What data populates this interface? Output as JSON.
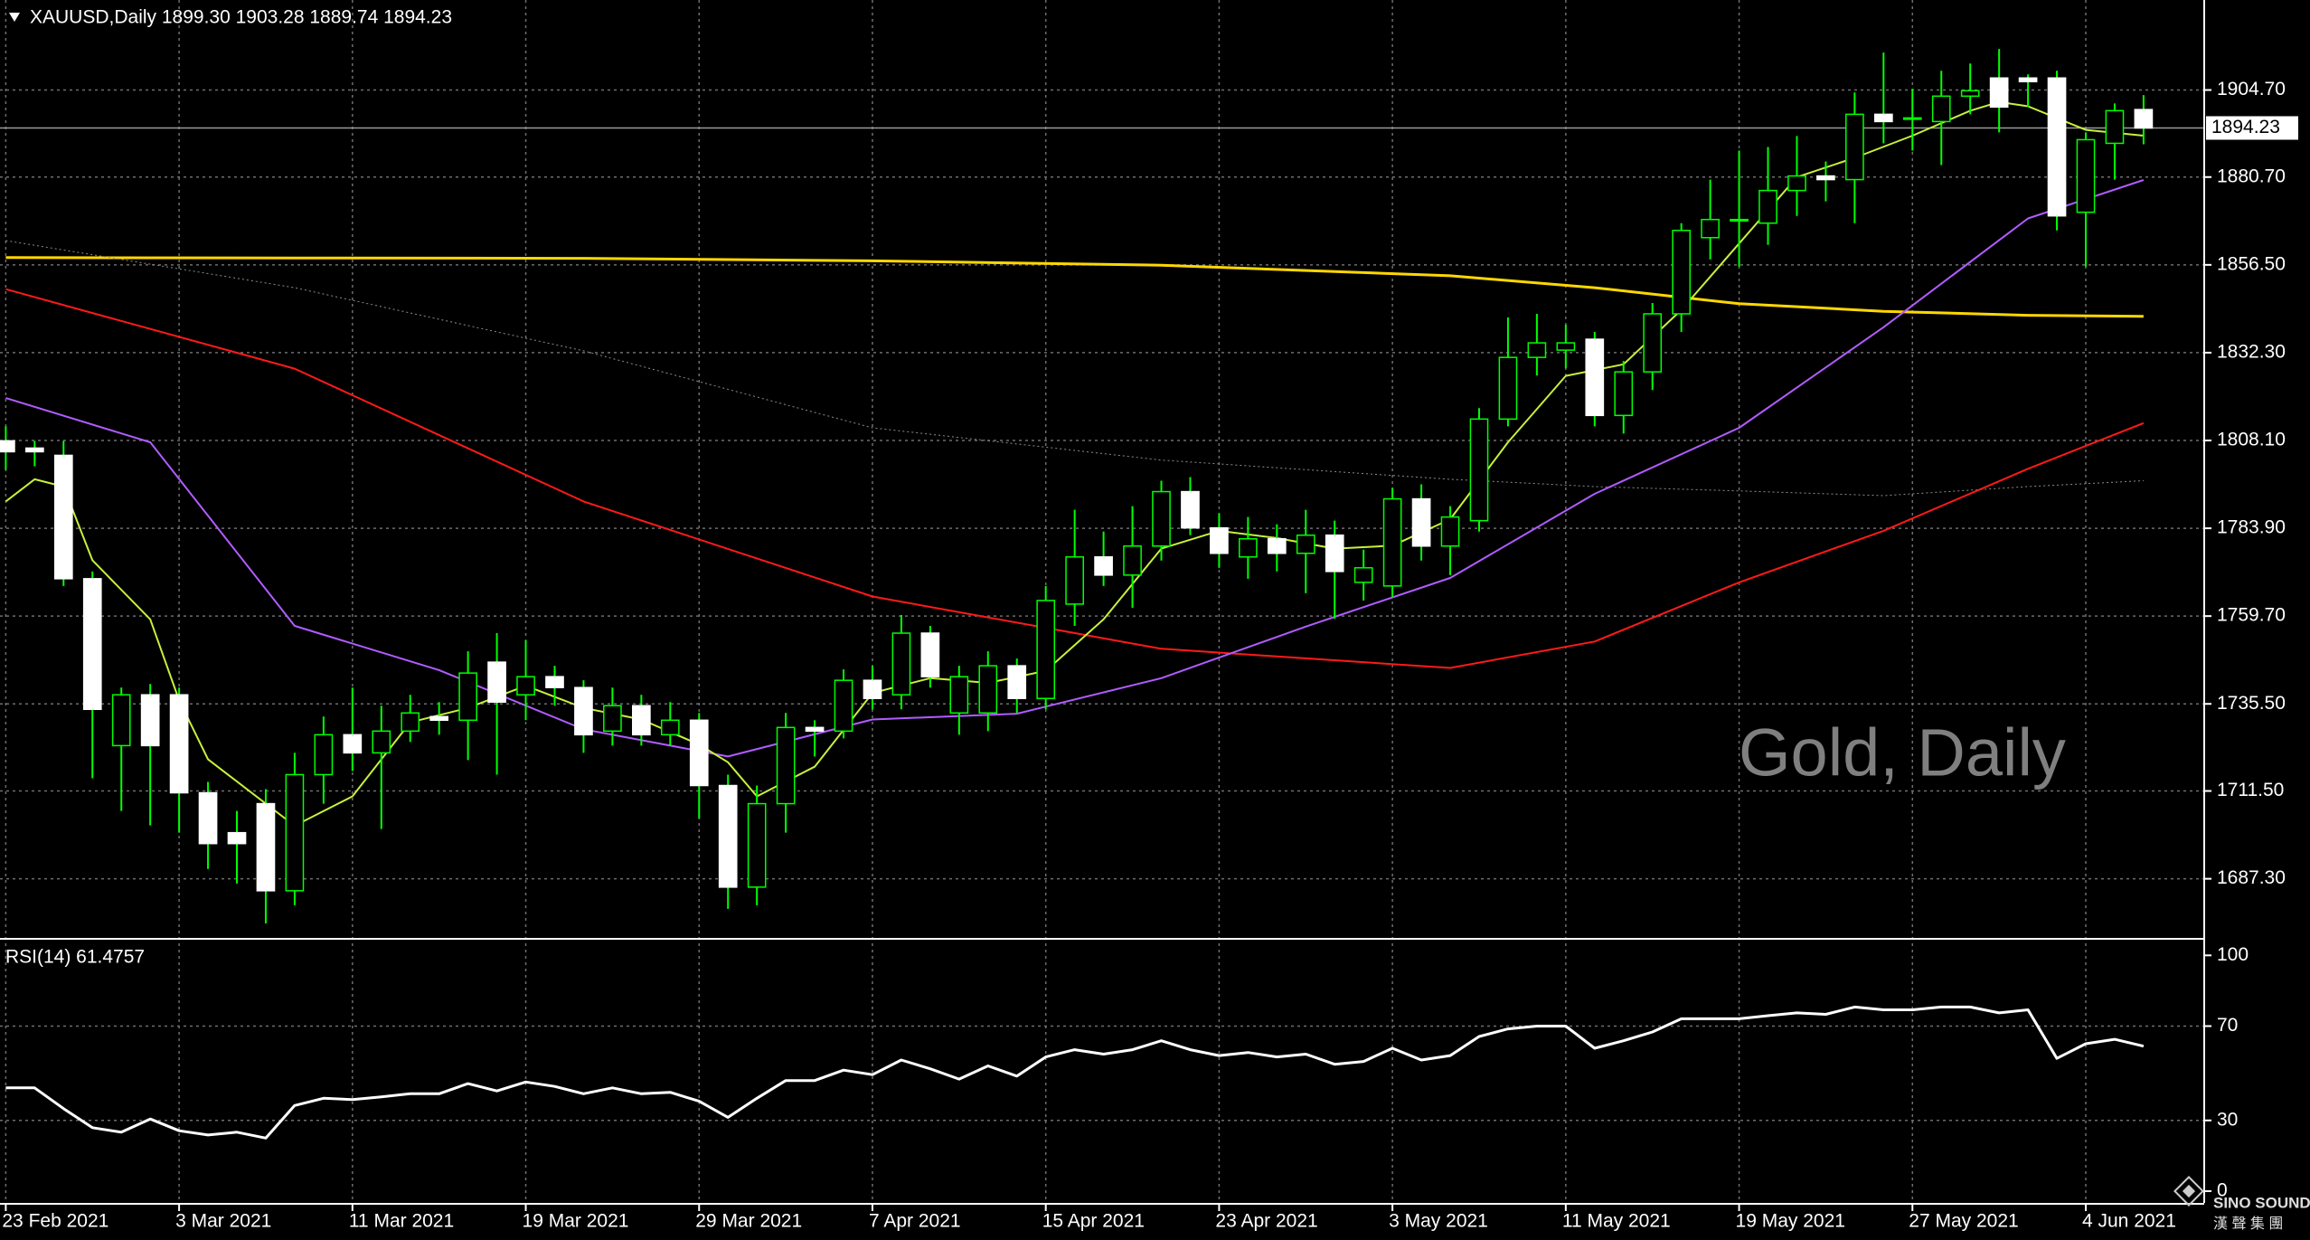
{
  "chart_data": [
    {
      "type": "candlestick",
      "title": "XAUUSD,Daily  1899.30 1903.28 1889.74 1894.23",
      "watermark": "Gold, Daily",
      "categories": [
        "23 Feb 2021",
        null,
        null,
        null,
        null,
        null,
        "3 Mar 2021",
        null,
        null,
        null,
        null,
        null,
        "11 Mar 2021",
        null,
        null,
        null,
        null,
        null,
        "19 Mar 2021",
        null,
        null,
        null,
        null,
        null,
        "29 Mar 2021",
        null,
        null,
        null,
        null,
        null,
        "7 Apr 2021",
        null,
        null,
        null,
        null,
        null,
        "15 Apr 2021",
        null,
        null,
        null,
        null,
        null,
        "23 Apr 2021",
        null,
        null,
        null,
        null,
        null,
        "3 May 2021",
        null,
        null,
        null,
        null,
        null,
        "11 May 2021",
        null,
        null,
        null,
        null,
        null,
        "19 May 2021",
        null,
        null,
        null,
        null,
        null,
        "27 May 2021",
        null,
        null,
        null,
        null,
        null,
        "4 Jun 2021",
        null,
        null
      ],
      "open": [
        1808,
        1806,
        1804,
        1770,
        1724,
        1738,
        1738,
        1711,
        1700,
        1708,
        1684,
        1716,
        1727,
        1722,
        1728,
        1732,
        1731,
        1747,
        1738,
        1743,
        1740,
        1728,
        1735,
        1727,
        1731,
        1713,
        1685,
        1708,
        1729,
        1728,
        1742,
        1738,
        1755,
        1733,
        1733,
        1746,
        1737,
        1763,
        1776,
        1771,
        1779,
        1794,
        1784,
        1776,
        1781,
        1777,
        1782,
        1769,
        1768,
        1792,
        1779,
        1786,
        1814,
        1831,
        1833,
        1836,
        1815,
        1827,
        1843,
        1864,
        1869,
        1868,
        1877,
        1881,
        1880,
        1898,
        1897,
        1896,
        1903,
        1908,
        1908,
        1908,
        1871,
        1890,
        1899.3
      ],
      "high": [
        1812,
        1808,
        1808,
        1772,
        1740,
        1741,
        1740,
        1714,
        1706,
        1712,
        1722,
        1732,
        1740,
        1735,
        1738,
        1736,
        1750,
        1755,
        1753,
        1746,
        1742,
        1740,
        1738,
        1736,
        1733,
        1716,
        1713,
        1733,
        1731,
        1745,
        1746,
        1760,
        1757,
        1746,
        1750,
        1748,
        1768,
        1789,
        1783,
        1790,
        1797,
        1798,
        1788,
        1787,
        1785,
        1789,
        1786,
        1778,
        1795,
        1796,
        1790,
        1817,
        1842,
        1843,
        1840,
        1838,
        1830,
        1846,
        1868,
        1880,
        1888,
        1889,
        1892,
        1885,
        1904,
        1915,
        1905,
        1910,
        1912,
        1916,
        1909,
        1910,
        1893,
        1901,
        1903.28
      ],
      "low": [
        1800,
        1801,
        1768,
        1715,
        1706,
        1702,
        1700,
        1690,
        1686,
        1675,
        1680,
        1708,
        1717,
        1701,
        1725,
        1727,
        1720,
        1716,
        1731,
        1735,
        1722,
        1724,
        1724,
        1724,
        1704,
        1679,
        1680,
        1700,
        1721,
        1726,
        1734,
        1734,
        1740,
        1727,
        1728,
        1733,
        1734,
        1757,
        1768,
        1762,
        1775,
        1782,
        1773,
        1770,
        1772,
        1766,
        1759,
        1764,
        1765,
        1775,
        1771,
        1783,
        1812,
        1826,
        1828,
        1812,
        1810,
        1822,
        1838,
        1858,
        1856,
        1862,
        1870,
        1874,
        1868,
        1890,
        1888,
        1884,
        1898,
        1893,
        1900,
        1866,
        1856,
        1880,
        1889.74
      ],
      "close": [
        1805,
        1805,
        1770,
        1734,
        1738,
        1724,
        1711,
        1697,
        1697,
        1684,
        1716,
        1727,
        1722,
        1728,
        1733,
        1731,
        1744,
        1736,
        1743,
        1740,
        1727,
        1735,
        1727,
        1731,
        1713,
        1685,
        1708,
        1729,
        1728,
        1742,
        1737,
        1755,
        1743,
        1743,
        1746,
        1737,
        1764,
        1776,
        1771,
        1779,
        1794,
        1784,
        1777,
        1781,
        1777,
        1782,
        1772,
        1773,
        1792,
        1779,
        1787,
        1814,
        1831,
        1835,
        1835,
        1815,
        1827,
        1843,
        1866,
        1869,
        1869,
        1877,
        1881,
        1880,
        1898,
        1896,
        1897,
        1903,
        1904.5,
        1900,
        1907,
        1870,
        1891,
        1899,
        1894.23
      ],
      "up_color": "#000000",
      "down_color": "#ffffff",
      "outline_up": "#00ff00",
      "outline_down": "#ffffff",
      "xlim": [
        -0.2,
        76.1
      ],
      "ylim": [
        1671.0,
        1929.5
      ],
      "yticks": [
        {
          "value": 1904.7,
          "label": "1904.70"
        },
        {
          "value": 1880.7,
          "label": "1880.70"
        },
        {
          "value": 1856.5,
          "label": "1856.50"
        },
        {
          "value": 1832.3,
          "label": "1832.30"
        },
        {
          "value": 1808.1,
          "label": "1808.10"
        },
        {
          "value": 1783.9,
          "label": "1783.90"
        },
        {
          "value": 1759.7,
          "label": "1759.70"
        },
        {
          "value": 1735.5,
          "label": "1735.50"
        },
        {
          "value": 1711.5,
          "label": "1711.50"
        },
        {
          "value": 1687.3,
          "label": "1687.30"
        }
      ],
      "grid": true,
      "bid": 1894.23,
      "overlays": [
        {
          "color": "#ffd700",
          "width": 3,
          "dash": false,
          "x": [
            0,
            10,
            20,
            30,
            40,
            50,
            55,
            60,
            65,
            70,
            74
          ],
          "values": [
            1858.5,
            1858.4,
            1858.3,
            1857.6,
            1856.4,
            1853.5,
            1850.2,
            1845.8,
            1843.7,
            1842.6,
            1842.3
          ]
        },
        {
          "color": "#8c8c8c",
          "width": 1,
          "dash": true,
          "x": [
            0,
            10,
            20,
            30,
            40,
            50,
            55,
            60,
            65,
            70,
            74
          ],
          "values": [
            1863.2,
            1850.2,
            1832.8,
            1811.6,
            1802.7,
            1797.4,
            1795.4,
            1794.2,
            1792.9,
            1795.4,
            1797.0
          ]
        },
        {
          "color": "#ff1a1a",
          "width": 2,
          "dash": false,
          "x": [
            0,
            10,
            20,
            30,
            40,
            50,
            55,
            60,
            65,
            70,
            74
          ],
          "values": [
            1849.8,
            1827.9,
            1791.3,
            1765.1,
            1750.7,
            1745.4,
            1752.7,
            1769.0,
            1783.2,
            1800.3,
            1812.9
          ]
        },
        {
          "color": "#b15cff",
          "width": 2,
          "dash": false,
          "x": [
            0,
            5,
            10,
            15,
            20,
            25,
            30,
            35,
            40,
            45,
            50,
            55,
            60,
            65,
            70,
            74
          ],
          "values": [
            1819.8,
            1807.6,
            1757.0,
            1744.8,
            1728.5,
            1721.0,
            1731.2,
            1732.8,
            1742.6,
            1756.8,
            1770.2,
            1793.4,
            1811.6,
            1839.3,
            1869.3,
            1879.9
          ]
        },
        {
          "color": "#c8f03c",
          "width": 2,
          "dash": false,
          "x": [
            0,
            1,
            2,
            3,
            5,
            6,
            7,
            9,
            10,
            12,
            14,
            16,
            18,
            20,
            22,
            24,
            25,
            26,
            28,
            30,
            32,
            34,
            36,
            38,
            40,
            42,
            44,
            46,
            48,
            50,
            52,
            54,
            56,
            58,
            60,
            62,
            64,
            66,
            68,
            69,
            70,
            72,
            74
          ],
          "values": [
            1791.3,
            1797.4,
            1795.4,
            1775.1,
            1758.8,
            1736.5,
            1720.2,
            1708.0,
            1701.9,
            1710.0,
            1730.4,
            1734.4,
            1740.5,
            1734.4,
            1731.2,
            1724.3,
            1719.4,
            1710.0,
            1718.2,
            1738.5,
            1742.6,
            1741.3,
            1744.6,
            1758.8,
            1778.3,
            1783.2,
            1781.2,
            1778.3,
            1779.1,
            1786.4,
            1807.6,
            1825.9,
            1829.1,
            1844.1,
            1862.4,
            1880.7,
            1886.0,
            1892.1,
            1899.0,
            1901.4,
            1900.2,
            1893.7,
            1892.1
          ]
        }
      ]
    },
    {
      "type": "line",
      "title": "RSI(14) 61.4757",
      "color": "#ffffff",
      "values": [
        43.8,
        43.8,
        35.0,
        26.9,
        25.0,
        30.6,
        25.6,
        23.8,
        25.0,
        22.5,
        36.3,
        39.4,
        38.8,
        40.0,
        41.3,
        41.3,
        45.6,
        42.5,
        46.3,
        44.4,
        41.3,
        43.8,
        41.3,
        41.9,
        38.1,
        31.3,
        39.4,
        46.9,
        46.9,
        51.3,
        49.4,
        55.6,
        51.9,
        47.5,
        53.1,
        48.8,
        56.9,
        60.0,
        58.1,
        60.0,
        63.8,
        60.0,
        57.5,
        58.8,
        56.9,
        58.1,
        53.8,
        55.0,
        60.6,
        55.6,
        57.5,
        65.6,
        68.8,
        70.0,
        70.0,
        60.6,
        63.8,
        67.5,
        73.1,
        73.1,
        73.1,
        74.4,
        75.6,
        75.0,
        78.1,
        76.9,
        76.9,
        78.1,
        78.1,
        75.6,
        76.9,
        56.3,
        62.5,
        64.4,
        61.4757
      ],
      "xlim": [
        -0.2,
        76.1
      ],
      "ylim": [
        -5,
        106.25
      ],
      "yticks": [
        0,
        30,
        70,
        100
      ],
      "levels": [
        30,
        70
      ]
    }
  ],
  "logo": {
    "name": "SINO SOUND",
    "subtitle": "漢 聲 集 團"
  }
}
